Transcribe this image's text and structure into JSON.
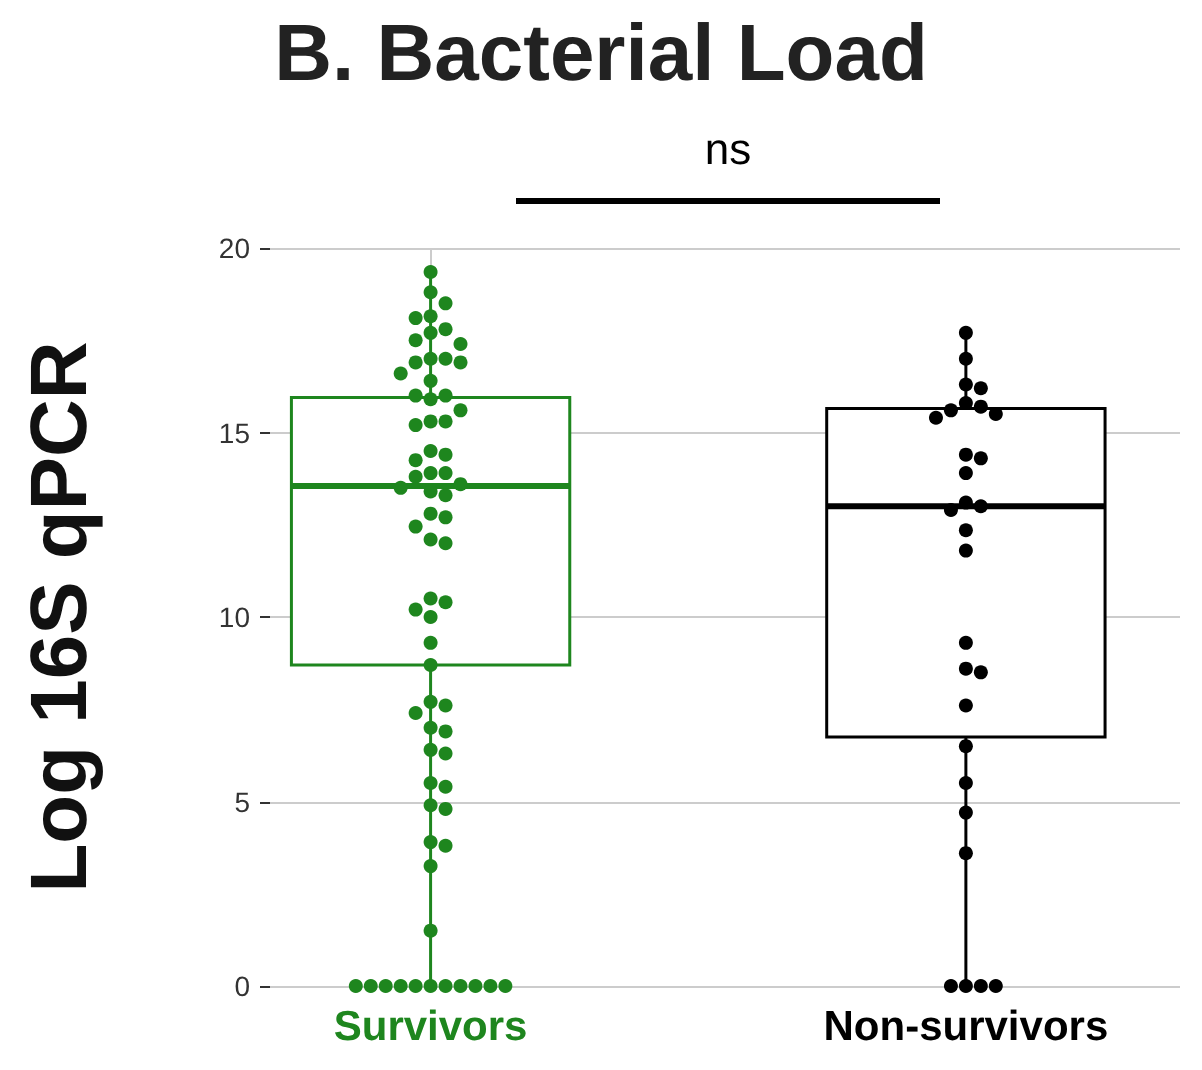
{
  "chart_data": {
    "type": "box",
    "title": "B. Bacterial Load",
    "ylabel": "Log 16S qPCR",
    "categories": [
      "Survivors",
      "Non-survivors"
    ],
    "colors": [
      "#1e861e",
      "#000000"
    ],
    "boxes": [
      {
        "low": 0,
        "q1": 8.7,
        "median": 13.55,
        "q3": 15.95,
        "high": 19.35
      },
      {
        "low": 0,
        "q1": 6.75,
        "median": 13.0,
        "q3": 15.65,
        "high": 17.7
      }
    ],
    "series": [
      {
        "type": "scatter",
        "color": "#1e861e",
        "x": [
          "Survivors",
          "Survivors",
          "Survivors",
          "Survivors",
          "Survivors",
          "Survivors",
          "Survivors",
          "Survivors",
          "Survivors",
          "Survivors",
          "Survivors",
          "Survivors",
          "Survivors",
          "Survivors",
          "Survivors",
          "Survivors",
          "Survivors",
          "Survivors",
          "Survivors",
          "Survivors",
          "Survivors",
          "Survivors",
          "Survivors",
          "Survivors",
          "Survivors",
          "Survivors",
          "Survivors",
          "Survivors",
          "Survivors",
          "Survivors",
          "Survivors",
          "Survivors",
          "Survivors",
          "Survivors",
          "Survivors",
          "Survivors",
          "Survivors",
          "Survivors",
          "Survivors",
          "Survivors",
          "Survivors",
          "Survivors",
          "Survivors",
          "Survivors",
          "Survivors",
          "Survivors",
          "Survivors",
          "Survivors",
          "Survivors",
          "Survivors",
          "Survivors",
          "Survivors",
          "Survivors",
          "Survivors",
          "Survivors",
          "Survivors",
          "Survivors",
          "Survivors",
          "Survivors",
          "Survivors",
          "Survivors",
          "Survivors",
          "Survivors",
          "Survivors",
          "Survivors",
          "Survivors",
          "Survivors",
          "Survivors",
          "Survivors"
        ],
        "values": [
          19.35,
          18.8,
          18.5,
          18.15,
          18.1,
          17.8,
          17.7,
          17.5,
          17.4,
          17.0,
          17.0,
          16.9,
          16.9,
          16.6,
          16.4,
          16.0,
          16.0,
          15.9,
          15.6,
          15.3,
          15.3,
          15.2,
          14.5,
          14.4,
          14.25,
          13.9,
          13.9,
          13.8,
          13.6,
          13.5,
          13.4,
          13.3,
          12.8,
          12.7,
          12.45,
          12.1,
          12.0,
          10.5,
          10.4,
          10.2,
          10.0,
          9.3,
          8.7,
          7.7,
          7.6,
          7.4,
          7.0,
          6.9,
          6.4,
          6.3,
          5.5,
          5.4,
          4.9,
          4.8,
          3.9,
          3.8,
          3.25,
          1.5,
          0,
          0,
          0,
          0,
          0,
          0,
          0,
          0,
          0,
          0,
          0
        ]
      },
      {
        "type": "scatter",
        "color": "#000000",
        "x": [
          "Non-survivors",
          "Non-survivors",
          "Non-survivors",
          "Non-survivors",
          "Non-survivors",
          "Non-survivors",
          "Non-survivors",
          "Non-survivors",
          "Non-survivors",
          "Non-survivors",
          "Non-survivors",
          "Non-survivors",
          "Non-survivors",
          "Non-survivors",
          "Non-survivors",
          "Non-survivors",
          "Non-survivors",
          "Non-survivors",
          "Non-survivors",
          "Non-survivors",
          "Non-survivors",
          "Non-survivors",
          "Non-survivors",
          "Non-survivors",
          "Non-survivors",
          "Non-survivors",
          "Non-survivors",
          "Non-survivors",
          "Non-survivors"
        ],
        "values": [
          17.7,
          17.0,
          16.3,
          16.2,
          15.8,
          15.7,
          15.6,
          15.5,
          15.4,
          14.4,
          14.3,
          13.9,
          13.1,
          13.0,
          12.9,
          12.35,
          11.8,
          9.3,
          8.6,
          8.5,
          7.6,
          6.5,
          5.5,
          4.7,
          3.6,
          0,
          0,
          0,
          0
        ]
      }
    ],
    "ylim": [
      0,
      20
    ],
    "yticks": [
      0,
      5,
      10,
      15,
      20
    ],
    "grid": true,
    "marker": "circle",
    "annotations": [
      "ns"
    ]
  }
}
